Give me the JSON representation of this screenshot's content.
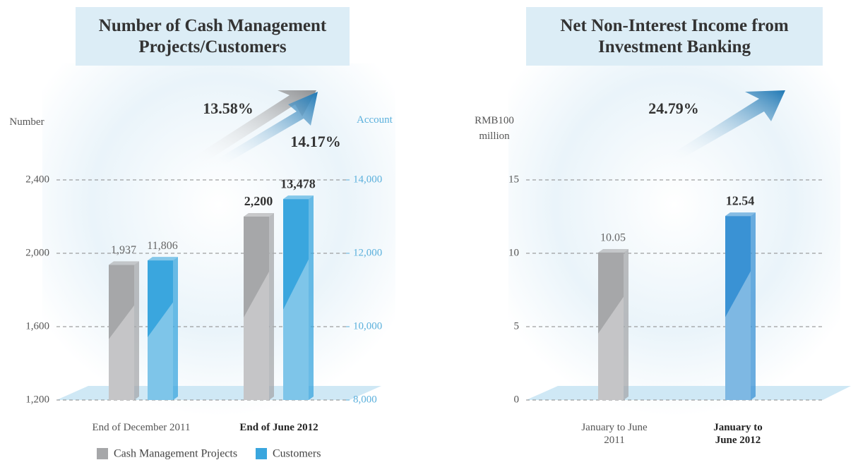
{
  "chart_data": [
    {
      "type": "bar",
      "title": "Number of Cash Management Projects/Customers",
      "ylabel": "Number",
      "y2label": "Account",
      "annotations": [
        "13.58%",
        "14.17%"
      ],
      "categories": [
        "End of December 2011",
        "End of June 2012"
      ],
      "series": [
        {
          "name": "Cash Management Projects",
          "color": "#a6a7a9",
          "values": [
            1937,
            2200
          ],
          "value_labels": [
            "1,937",
            "2,200"
          ]
        },
        {
          "name": "Customers",
          "color": "#3aa6de",
          "values": [
            11806,
            13478
          ],
          "value_labels": [
            "11,806",
            "13,478"
          ],
          "axis": "y2"
        }
      ],
      "ylim": [
        1200,
        2400
      ],
      "yticks": [
        {
          "value": 1200,
          "label": "1,200"
        },
        {
          "value": 1600,
          "label": "1,600"
        },
        {
          "value": 2000,
          "label": "2,000"
        },
        {
          "value": 2400,
          "label": "2,400"
        }
      ],
      "y2lim": [
        8000,
        14000
      ],
      "y2ticks": [
        {
          "value": 8000,
          "label": "8,000"
        },
        {
          "value": 10000,
          "label": "10,000"
        },
        {
          "value": 12000,
          "label": "12,000"
        },
        {
          "value": 14000,
          "label": "14,000"
        }
      ],
      "grid": true
    },
    {
      "type": "bar",
      "title": "Net Non-Interest Income from Investment Banking",
      "ylabel": "RMB100 million",
      "annotations": [
        "24.79%"
      ],
      "categories": [
        "January to June 2011",
        "January to June 2012"
      ],
      "values": [
        10.05,
        12.54
      ],
      "colors": [
        "#a6a7a9",
        "#3a92d4"
      ],
      "ylim": [
        0,
        15
      ],
      "yticks": [
        0,
        5,
        10,
        15
      ],
      "grid": true
    }
  ]
}
